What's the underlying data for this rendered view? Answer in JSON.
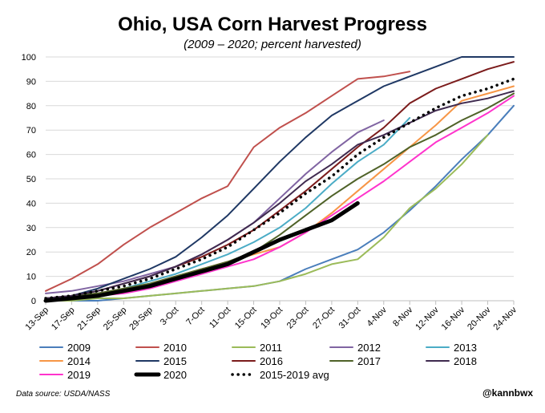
{
  "chart_data": {
    "type": "line",
    "title": "Ohio, USA Corn Harvest Progress",
    "subtitle": "(2009 – 2020; percent harvested)",
    "source": "Data source: USDA/NASS",
    "credit": "@kannbwx",
    "categories": [
      "13-Sep",
      "17-Sep",
      "21-Sep",
      "25-Sep",
      "29-Sep",
      "3-Oct",
      "7-Oct",
      "11-Oct",
      "15-Oct",
      "19-Oct",
      "23-Oct",
      "27-Oct",
      "31-Oct",
      "4-Nov",
      "8-Nov",
      "12-Nov",
      "16-Nov",
      "20-Nov",
      "24-Nov"
    ],
    "ylim": [
      0,
      100
    ],
    "yticks": [
      0,
      10,
      20,
      30,
      40,
      50,
      60,
      70,
      80,
      90,
      100
    ],
    "grid": true,
    "series": [
      {
        "name": "2009",
        "color": "#4a7ebb",
        "values": [
          0,
          0,
          0,
          1,
          2,
          3,
          4,
          5,
          6,
          8,
          13,
          17,
          21,
          28,
          37,
          47,
          58,
          68,
          80
        ]
      },
      {
        "name": "2010",
        "color": "#c0504d",
        "values": [
          4,
          9,
          15,
          23,
          30,
          36,
          42,
          47,
          63,
          71,
          77,
          84,
          91,
          92,
          94,
          null,
          null,
          null,
          null
        ]
      },
      {
        "name": "2011",
        "color": "#9bbb59",
        "values": [
          0,
          0,
          1,
          1,
          2,
          3,
          4,
          5,
          6,
          8,
          11,
          15,
          17,
          26,
          38,
          46,
          56,
          68,
          null
        ]
      },
      {
        "name": "2012",
        "color": "#8064a2",
        "values": [
          3,
          4,
          6,
          8,
          11,
          14,
          19,
          25,
          32,
          42,
          52,
          61,
          69,
          74,
          null,
          null,
          null,
          null,
          null
        ]
      },
      {
        "name": "2013",
        "color": "#4bacc6",
        "values": [
          1,
          2,
          3,
          5,
          8,
          11,
          15,
          19,
          24,
          30,
          38,
          48,
          57,
          64,
          75,
          null,
          null,
          null,
          null
        ]
      },
      {
        "name": "2014",
        "color": "#f79646",
        "values": [
          1,
          2,
          3,
          5,
          7,
          10,
          13,
          16,
          19,
          22,
          28,
          36,
          45,
          54,
          63,
          72,
          82,
          85,
          88
        ]
      },
      {
        "name": "2015",
        "color": "#1f3864",
        "values": [
          1,
          2,
          5,
          9,
          13,
          18,
          26,
          35,
          46,
          57,
          67,
          76,
          82,
          88,
          92,
          96,
          100,
          100,
          100
        ]
      },
      {
        "name": "2016",
        "color": "#7b1b1b",
        "values": [
          1,
          2,
          4,
          7,
          10,
          14,
          18,
          23,
          29,
          37,
          45,
          54,
          63,
          71,
          81,
          87,
          91,
          95,
          98
        ]
      },
      {
        "name": "2017",
        "color": "#4f6228",
        "values": [
          1,
          2,
          3,
          5,
          7,
          10,
          13,
          16,
          20,
          27,
          35,
          43,
          50,
          56,
          63,
          68,
          74,
          79,
          85
        ]
      },
      {
        "name": "2018",
        "color": "#3f2a4f",
        "values": [
          1,
          2,
          4,
          7,
          10,
          14,
          19,
          25,
          32,
          40,
          49,
          56,
          64,
          68,
          73,
          78,
          81,
          83,
          86
        ]
      },
      {
        "name": "2019",
        "color": "#ff33cc",
        "values": [
          0,
          1,
          2,
          3,
          5,
          8,
          11,
          14,
          17,
          22,
          28,
          35,
          42,
          49,
          57,
          65,
          71,
          77,
          84
        ]
      },
      {
        "name": "2020",
        "color": "#000000",
        "line_width": 5,
        "values": [
          0,
          1,
          2,
          4,
          6,
          9,
          12,
          15,
          20,
          25,
          29,
          33,
          40,
          null,
          null,
          null,
          null,
          null,
          null
        ]
      },
      {
        "name": "2015-2019 avg",
        "color": "#000000",
        "line_style": "dotted",
        "values": [
          1,
          2,
          4,
          6,
          9,
          13,
          17,
          22,
          29,
          36,
          44,
          51,
          60,
          67,
          73,
          79,
          84,
          87,
          91
        ]
      }
    ]
  }
}
